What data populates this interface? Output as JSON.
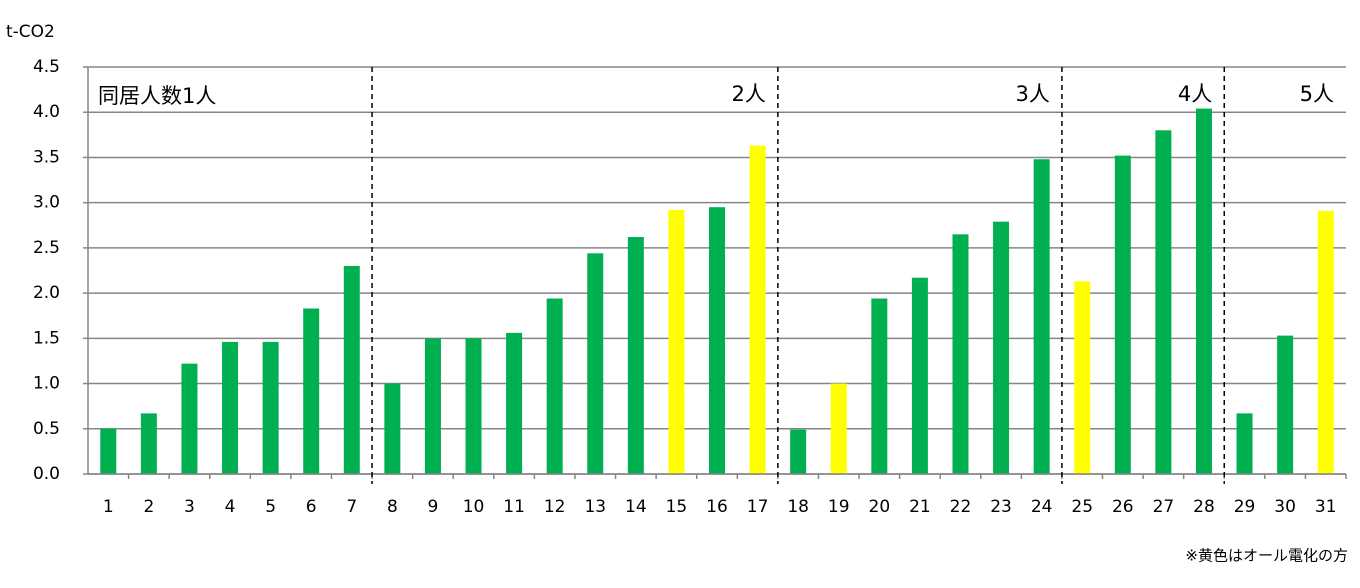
{
  "chart_data": {
    "type": "bar",
    "y_axis_label": "t-CO2",
    "categories": [
      "1",
      "2",
      "3",
      "4",
      "5",
      "6",
      "7",
      "8",
      "9",
      "10",
      "11",
      "12",
      "13",
      "14",
      "15",
      "16",
      "17",
      "18",
      "19",
      "20",
      "21",
      "22",
      "23",
      "24",
      "25",
      "26",
      "27",
      "28",
      "29",
      "30",
      "31"
    ],
    "values": [
      0.5,
      0.67,
      1.22,
      1.46,
      1.46,
      1.83,
      2.3,
      1.0,
      1.5,
      1.5,
      1.56,
      1.94,
      2.44,
      2.62,
      2.92,
      2.95,
      3.63,
      0.49,
      1.0,
      1.94,
      2.17,
      2.65,
      2.79,
      3.48,
      2.13,
      3.52,
      3.8,
      4.04,
      0.67,
      1.53,
      2.91
    ],
    "colors": [
      "#00b050",
      "#00b050",
      "#00b050",
      "#00b050",
      "#00b050",
      "#00b050",
      "#00b050",
      "#00b050",
      "#00b050",
      "#00b050",
      "#00b050",
      "#00b050",
      "#00b050",
      "#00b050",
      "#ffff00",
      "#00b050",
      "#ffff00",
      "#00b050",
      "#ffff00",
      "#00b050",
      "#00b050",
      "#00b050",
      "#00b050",
      "#00b050",
      "#ffff00",
      "#00b050",
      "#00b050",
      "#00b050",
      "#00b050",
      "#00b050",
      "#ffff00"
    ],
    "ylim": [
      0,
      4.5
    ],
    "yticks": [
      {
        "value": 0,
        "label": "0.0"
      },
      {
        "value": 0.5,
        "label": "0.5"
      },
      {
        "value": 1,
        "label": "1.0"
      },
      {
        "value": 1.5,
        "label": "1.5"
      },
      {
        "value": 2,
        "label": "2.0"
      },
      {
        "value": 2.5,
        "label": "2.5"
      },
      {
        "value": 3,
        "label": "3.0"
      },
      {
        "value": 3.5,
        "label": "3.5"
      },
      {
        "value": 4,
        "label": "4.0"
      },
      {
        "value": 4.5,
        "label": "4.5"
      }
    ],
    "grid": true,
    "group_labels": [
      "同居人数1人",
      "2人",
      "3人",
      "4人",
      "5人"
    ],
    "note": "※黄色はオール電化の方"
  }
}
